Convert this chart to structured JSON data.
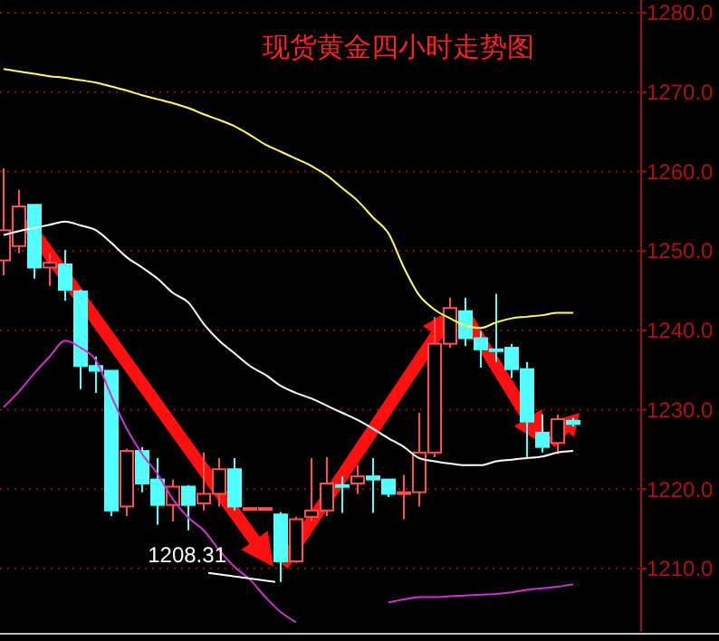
{
  "chart_data": {
    "type": "candlestick",
    "title": "现货黄金四小时走势图",
    "categories": [
      null,
      null,
      null,
      null,
      null,
      null,
      null,
      null,
      null,
      null,
      null,
      null,
      null,
      null,
      null,
      null,
      null,
      null,
      null,
      null,
      null,
      null,
      null,
      null,
      null,
      null,
      null,
      null,
      null,
      null,
      null,
      null,
      null,
      null,
      null,
      null,
      null,
      null
    ],
    "ohlc": [
      [
        1248.8,
        1260.4,
        1246.9,
        1252.6
      ],
      [
        1250.6,
        1257.7,
        1249.7,
        1255.6
      ],
      [
        1255.8,
        1255.8,
        1246.5,
        1247.9
      ],
      [
        1247.9,
        1249.7,
        1245.6,
        1248.5
      ],
      [
        1248.3,
        1250.1,
        1243.7,
        1245.1
      ],
      [
        1244.9,
        1245.1,
        1232.6,
        1235.5
      ],
      [
        1235.5,
        1236.7,
        1232.1,
        1234.9
      ],
      [
        1234.9,
        1234.9,
        1216.6,
        1217.3
      ],
      [
        1217.8,
        1225.1,
        1216.6,
        1224.8
      ],
      [
        1224.8,
        1225.3,
        1219.6,
        1220.7
      ],
      [
        1221.2,
        1223.9,
        1215.5,
        1218.0
      ],
      [
        1218.0,
        1221.2,
        1215.9,
        1220.3
      ],
      [
        1220.3,
        1220.5,
        1214.8,
        1218.0
      ],
      [
        1218.2,
        1224.6,
        1217.3,
        1219.4
      ],
      [
        1219.4,
        1223.9,
        1217.8,
        1222.5
      ],
      [
        1222.5,
        1223.9,
        1217.3,
        1217.8
      ],
      [
        1217.5,
        1217.6,
        1217.4,
        1217.6
      ],
      [
        1217.5,
        1217.6,
        1217.4,
        1217.6
      ],
      [
        1216.8,
        1217.1,
        1208.31,
        1210.9
      ],
      [
        1210.9,
        1216.5,
        1210.7,
        1216.2
      ],
      [
        1216.5,
        1223.9,
        1216.0,
        1217.3
      ],
      [
        1217.3,
        1224.0,
        1216.6,
        1220.7
      ],
      [
        1220.5,
        1221.6,
        1217.0,
        1220.3
      ],
      [
        1220.7,
        1223.0,
        1219.4,
        1221.6
      ],
      [
        1221.6,
        1223.9,
        1217.0,
        1221.2
      ],
      [
        1221.2,
        1221.2,
        1219.0,
        1219.4
      ],
      [
        1219.5,
        1221.8,
        1216.2,
        1219.6
      ],
      [
        1219.6,
        1229.6,
        1217.8,
        1224.6
      ],
      [
        1224.6,
        1241.7,
        1224.0,
        1238.3
      ],
      [
        1238.3,
        1244.1,
        1237.8,
        1242.8
      ],
      [
        1242.4,
        1244.1,
        1238.0,
        1239.0
      ],
      [
        1239.0,
        1239.9,
        1235.3,
        1237.6
      ],
      [
        1237.6,
        1244.6,
        1236.0,
        1237.4
      ],
      [
        1237.8,
        1238.3,
        1234.0,
        1235.1
      ],
      [
        1235.1,
        1236.0,
        1224.0,
        1228.5
      ],
      [
        1227.1,
        1229.4,
        1224.6,
        1225.3
      ],
      [
        1225.8,
        1229.4,
        1224.4,
        1228.8
      ],
      [
        1228.6,
        1229.0,
        1227.9,
        1228.2
      ]
    ],
    "colors": [
      "#ff5050",
      "#ff5050",
      "#54ffff",
      "#ff5050",
      "#54ffff",
      "#54ffff",
      "#54ffff",
      "#54ffff",
      "#ff5050",
      "#54ffff",
      "#54ffff",
      "#ff5050",
      "#54ffff",
      "#ff5050",
      "#ff5050",
      "#54ffff",
      "#ff5050",
      "#ff5050",
      "#54ffff",
      "#ff5050",
      "#ff5050",
      "#ff5050",
      "#54ffff",
      "#ff5050",
      "#54ffff",
      "#54ffff",
      "#ff5050",
      "#ff5050",
      "#ff5050",
      "#ff5050",
      "#54ffff",
      "#54ffff",
      "#54ffff",
      "#54ffff",
      "#54ffff",
      "#54ffff",
      "#ff5050",
      "#54ffff"
    ],
    "series": [
      {
        "type": "line",
        "color": "#ffff66",
        "values": [
          1272.9,
          1272.6,
          1272.3,
          1272.0,
          1271.8,
          1271.5,
          1271.2,
          1270.7,
          1270.2,
          1269.6,
          1269.1,
          1268.6,
          1268.0,
          1267.2,
          1266.5,
          1265.7,
          1264.6,
          1263.4,
          1262.5,
          1261.6,
          1260.7,
          1259.5,
          1257.9,
          1256.3,
          1254.2,
          1252.2,
          1247.9,
          1244.4,
          1242.6,
          1241.5,
          1240.6,
          1240.3,
          1241.0,
          1241.5,
          1241.7,
          1241.9,
          1242.2,
          1242.2
        ]
      },
      {
        "type": "line",
        "color": "#ffffff",
        "values": [
          1252.0,
          1252.5,
          1252.9,
          1253.3,
          1253.7,
          1253.2,
          1252.6,
          1251.0,
          1249.2,
          1247.9,
          1246.5,
          1244.7,
          1243.5,
          1240.8,
          1238.7,
          1237.1,
          1235.5,
          1234.4,
          1233.0,
          1232.1,
          1231.4,
          1230.5,
          1229.6,
          1228.7,
          1227.6,
          1226.4,
          1225.3,
          1223.9,
          1223.5,
          1223.2,
          1223.0,
          1223.0,
          1223.5,
          1223.7,
          1223.9,
          1224.1,
          1224.6,
          1224.8
        ]
      },
      {
        "type": "line",
        "color": "#cc33cc",
        "values": [
          1230.3,
          1232.3,
          1234.6,
          1236.7,
          1238.7,
          1237.8,
          1236.2,
          1231.7,
          1227.6,
          1224.4,
          1221.9,
          1218.7,
          1216.4,
          1214.8,
          1212.3,
          1210.2,
          1208.6,
          1206.4,
          1204.5,
          1203.2,
          null,
          null,
          null,
          null,
          null,
          1205.7,
          1206.1,
          1206.4,
          1206.4,
          1206.5,
          1206.6,
          1206.7,
          1206.8,
          1207.0,
          1207.3,
          1207.5,
          1207.7,
          1208.0
        ]
      }
    ],
    "ylim": [
      1202,
      1281.6
    ],
    "yticks": [
      {
        "value": 1210,
        "label": "1210.0"
      },
      {
        "value": 1220,
        "label": "1220.0"
      },
      {
        "value": 1230,
        "label": "1230.0"
      },
      {
        "value": 1240,
        "label": "1240.0"
      },
      {
        "value": 1250,
        "label": "1250.0"
      },
      {
        "value": 1260,
        "label": "1260.0"
      },
      {
        "value": 1270,
        "label": "1270.0"
      },
      {
        "value": 1280,
        "label": "1280.0"
      }
    ],
    "grid": "y",
    "tick_labels": "y",
    "annotations": [
      "1208.31"
    ]
  }
}
